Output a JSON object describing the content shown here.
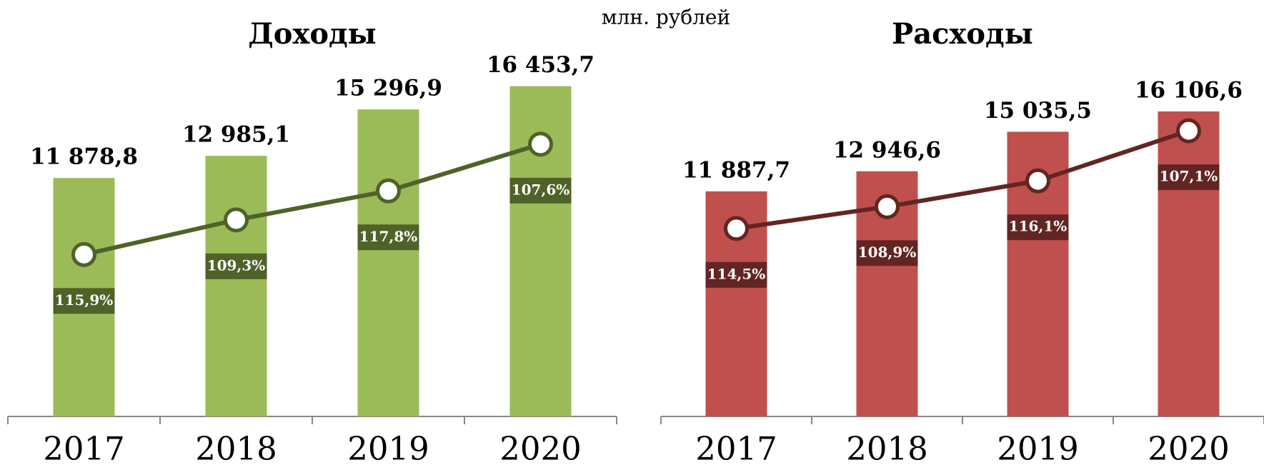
{
  "note": "млн. рублей",
  "chart_data": [
    {
      "type": "bar",
      "title": "Доходы",
      "categories": [
        "2017",
        "2018",
        "2019",
        "2020"
      ],
      "ylim": [
        0,
        20000
      ],
      "series": [
        {
          "type": "bar",
          "color": "#9bbb59",
          "values": [
            11878.8,
            12985.1,
            15296.9,
            16453.7
          ],
          "value_labels": [
            "11 878,8",
            "12 985,1",
            "15 296,9",
            "16 453,7"
          ]
        },
        {
          "type": "line",
          "color": "#4f6228",
          "values": [
            8066,
            9791,
            11236,
            13563
          ]
        }
      ],
      "annotations": [
        "115,9%",
        "109,3%",
        "117,8%",
        "107,6%"
      ]
    },
    {
      "type": "bar",
      "title": "Расходы",
      "categories": [
        "2017",
        "2018",
        "2019",
        "2020"
      ],
      "ylim": [
        0,
        21200
      ],
      "series": [
        {
          "type": "bar",
          "color": "#c0504d",
          "values": [
            11887.7,
            12946.6,
            15035.5,
            16106.6
          ],
          "value_labels": [
            "11 887,7",
            "12 946,6",
            "15 035,5",
            "16 106,6"
          ]
        },
        {
          "type": "line",
          "color": "#632523",
          "values": [
            9928,
            11078,
            12441,
            15083
          ]
        }
      ],
      "annotations": [
        "114,5%",
        "108,9%",
        "116,1%",
        "107,1%"
      ]
    }
  ]
}
